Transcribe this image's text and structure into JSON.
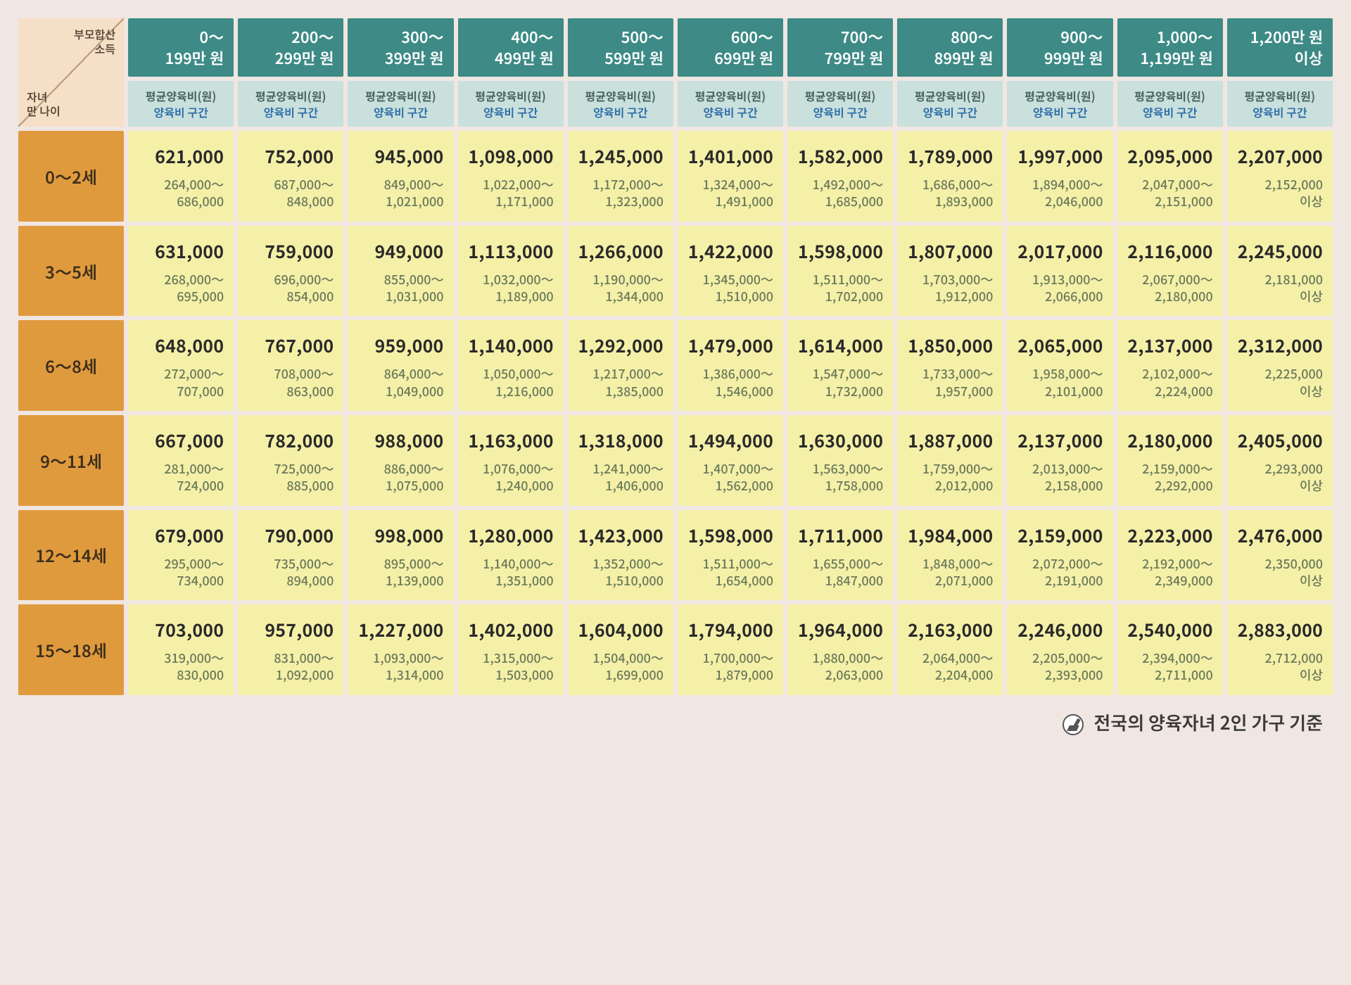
{
  "colors": {
    "page_bg": "#f0e6e2",
    "income_header_bg": "#3d8a86",
    "income_header_text": "#ffffff",
    "sub_header_bg": "#c9e0dd",
    "sub_header_text": "#4a6460",
    "sub_header_blue": "#2a6aa8",
    "row_header_bg": "#e09a3e",
    "row_header_text": "#3d2f1a",
    "cell_bg": "#f5f0a8",
    "avg_text": "#2a2a2a",
    "range_text": "#6a7a5a"
  },
  "corner": {
    "top_line1": "부모합산",
    "top_line2": "소득",
    "bot_line1": "자녀",
    "bot_line2": "만 나이"
  },
  "sub_header": {
    "line1": "평균양육비(원)",
    "line2": "양육비 구간"
  },
  "income_headers": [
    {
      "l1": "0～",
      "l2": "199만 원"
    },
    {
      "l1": "200～",
      "l2": "299만 원"
    },
    {
      "l1": "300～",
      "l2": "399만 원"
    },
    {
      "l1": "400～",
      "l2": "499만 원"
    },
    {
      "l1": "500～",
      "l2": "599만 원"
    },
    {
      "l1": "600～",
      "l2": "699만 원"
    },
    {
      "l1": "700～",
      "l2": "799만 원"
    },
    {
      "l1": "800～",
      "l2": "899만 원"
    },
    {
      "l1": "900～",
      "l2": "999만 원"
    },
    {
      "l1": "1,000～",
      "l2": "1,199만 원"
    },
    {
      "l1": "1,200만 원",
      "l2": "이상"
    }
  ],
  "age_headers": [
    "0～2세",
    "3～5세",
    "6～8세",
    "9～11세",
    "12～14세",
    "15～18세"
  ],
  "rows": [
    [
      {
        "avg": "621,000",
        "r1": "264,000～",
        "r2": "686,000"
      },
      {
        "avg": "752,000",
        "r1": "687,000～",
        "r2": "848,000"
      },
      {
        "avg": "945,000",
        "r1": "849,000～",
        "r2": "1,021,000"
      },
      {
        "avg": "1,098,000",
        "r1": "1,022,000～",
        "r2": "1,171,000"
      },
      {
        "avg": "1,245,000",
        "r1": "1,172,000～",
        "r2": "1,323,000"
      },
      {
        "avg": "1,401,000",
        "r1": "1,324,000～",
        "r2": "1,491,000"
      },
      {
        "avg": "1,582,000",
        "r1": "1,492,000～",
        "r2": "1,685,000"
      },
      {
        "avg": "1,789,000",
        "r1": "1,686,000～",
        "r2": "1,893,000"
      },
      {
        "avg": "1,997,000",
        "r1": "1,894,000～",
        "r2": "2,046,000"
      },
      {
        "avg": "2,095,000",
        "r1": "2,047,000～",
        "r2": "2,151,000"
      },
      {
        "avg": "2,207,000",
        "r1": "2,152,000",
        "r2": "이상"
      }
    ],
    [
      {
        "avg": "631,000",
        "r1": "268,000～",
        "r2": "695,000"
      },
      {
        "avg": "759,000",
        "r1": "696,000～",
        "r2": "854,000"
      },
      {
        "avg": "949,000",
        "r1": "855,000～",
        "r2": "1,031,000"
      },
      {
        "avg": "1,113,000",
        "r1": "1,032,000～",
        "r2": "1,189,000"
      },
      {
        "avg": "1,266,000",
        "r1": "1,190,000～",
        "r2": "1,344,000"
      },
      {
        "avg": "1,422,000",
        "r1": "1,345,000～",
        "r2": "1,510,000"
      },
      {
        "avg": "1,598,000",
        "r1": "1,511,000～",
        "r2": "1,702,000"
      },
      {
        "avg": "1,807,000",
        "r1": "1,703,000～",
        "r2": "1,912,000"
      },
      {
        "avg": "2,017,000",
        "r1": "1,913,000～",
        "r2": "2,066,000"
      },
      {
        "avg": "2,116,000",
        "r1": "2,067,000～",
        "r2": "2,180,000"
      },
      {
        "avg": "2,245,000",
        "r1": "2,181,000",
        "r2": "이상"
      }
    ],
    [
      {
        "avg": "648,000",
        "r1": "272,000～",
        "r2": "707,000"
      },
      {
        "avg": "767,000",
        "r1": "708,000～",
        "r2": "863,000"
      },
      {
        "avg": "959,000",
        "r1": "864,000～",
        "r2": "1,049,000"
      },
      {
        "avg": "1,140,000",
        "r1": "1,050,000～",
        "r2": "1,216,000"
      },
      {
        "avg": "1,292,000",
        "r1": "1,217,000～",
        "r2": "1,385,000"
      },
      {
        "avg": "1,479,000",
        "r1": "1,386,000～",
        "r2": "1,546,000"
      },
      {
        "avg": "1,614,000",
        "r1": "1,547,000～",
        "r2": "1,732,000"
      },
      {
        "avg": "1,850,000",
        "r1": "1,733,000～",
        "r2": "1,957,000"
      },
      {
        "avg": "2,065,000",
        "r1": "1,958,000～",
        "r2": "2,101,000"
      },
      {
        "avg": "2,137,000",
        "r1": "2,102,000～",
        "r2": "2,224,000"
      },
      {
        "avg": "2,312,000",
        "r1": "2,225,000",
        "r2": "이상"
      }
    ],
    [
      {
        "avg": "667,000",
        "r1": "281,000～",
        "r2": "724,000"
      },
      {
        "avg": "782,000",
        "r1": "725,000～",
        "r2": "885,000"
      },
      {
        "avg": "988,000",
        "r1": "886,000～",
        "r2": "1,075,000"
      },
      {
        "avg": "1,163,000",
        "r1": "1,076,000～",
        "r2": "1,240,000"
      },
      {
        "avg": "1,318,000",
        "r1": "1,241,000～",
        "r2": "1,406,000"
      },
      {
        "avg": "1,494,000",
        "r1": "1,407,000～",
        "r2": "1,562,000"
      },
      {
        "avg": "1,630,000",
        "r1": "1,563,000～",
        "r2": "1,758,000"
      },
      {
        "avg": "1,887,000",
        "r1": "1,759,000～",
        "r2": "2,012,000"
      },
      {
        "avg": "2,137,000",
        "r1": "2,013,000～",
        "r2": "2,158,000"
      },
      {
        "avg": "2,180,000",
        "r1": "2,159,000～",
        "r2": "2,292,000"
      },
      {
        "avg": "2,405,000",
        "r1": "2,293,000",
        "r2": "이상"
      }
    ],
    [
      {
        "avg": "679,000",
        "r1": "295,000～",
        "r2": "734,000"
      },
      {
        "avg": "790,000",
        "r1": "735,000～",
        "r2": "894,000"
      },
      {
        "avg": "998,000",
        "r1": "895,000～",
        "r2": "1,139,000"
      },
      {
        "avg": "1,280,000",
        "r1": "1,140,000～",
        "r2": "1,351,000"
      },
      {
        "avg": "1,423,000",
        "r1": "1,352,000～",
        "r2": "1,510,000"
      },
      {
        "avg": "1,598,000",
        "r1": "1,511,000～",
        "r2": "1,654,000"
      },
      {
        "avg": "1,711,000",
        "r1": "1,655,000～",
        "r2": "1,847,000"
      },
      {
        "avg": "1,984,000",
        "r1": "1,848,000～",
        "r2": "2,071,000"
      },
      {
        "avg": "2,159,000",
        "r1": "2,072,000～",
        "r2": "2,191,000"
      },
      {
        "avg": "2,223,000",
        "r1": "2,192,000～",
        "r2": "2,349,000"
      },
      {
        "avg": "2,476,000",
        "r1": "2,350,000",
        "r2": "이상"
      }
    ],
    [
      {
        "avg": "703,000",
        "r1": "319,000～",
        "r2": "830,000"
      },
      {
        "avg": "957,000",
        "r1": "831,000～",
        "r2": "1,092,000"
      },
      {
        "avg": "1,227,000",
        "r1": "1,093,000～",
        "r2": "1,314,000"
      },
      {
        "avg": "1,402,000",
        "r1": "1,315,000～",
        "r2": "1,503,000"
      },
      {
        "avg": "1,604,000",
        "r1": "1,504,000～",
        "r2": "1,699,000"
      },
      {
        "avg": "1,794,000",
        "r1": "1,700,000～",
        "r2": "1,879,000"
      },
      {
        "avg": "1,964,000",
        "r1": "1,880,000～",
        "r2": "2,063,000"
      },
      {
        "avg": "2,163,000",
        "r1": "2,064,000～",
        "r2": "2,204,000"
      },
      {
        "avg": "2,246,000",
        "r1": "2,205,000～",
        "r2": "2,393,000"
      },
      {
        "avg": "2,540,000",
        "r1": "2,394,000～",
        "r2": "2,711,000"
      },
      {
        "avg": "2,883,000",
        "r1": "2,712,000",
        "r2": "이상"
      }
    ]
  ],
  "footnote": "전국의 양육자녀 2인 가구 기준"
}
